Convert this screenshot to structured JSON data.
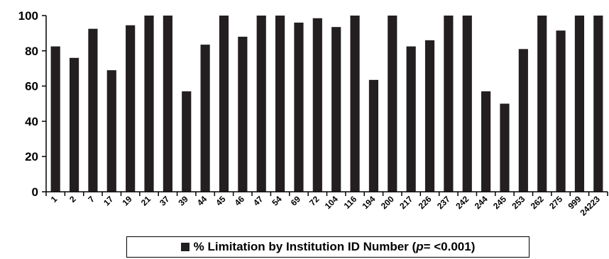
{
  "chart_data": {
    "type": "bar",
    "categories": [
      "1",
      "2",
      "7",
      "17",
      "19",
      "21",
      "37",
      "39",
      "44",
      "45",
      "46",
      "47",
      "54",
      "69",
      "72",
      "104",
      "116",
      "194",
      "200",
      "217",
      "226",
      "237",
      "242",
      "244",
      "245",
      "253",
      "262",
      "275",
      "999",
      "24223"
    ],
    "series": [
      {
        "name": "% Limitation by Institution ID Number",
        "values": [
          82.5,
          76,
          92.5,
          69,
          94.5,
          100,
          100,
          57,
          83.5,
          100,
          88,
          100,
          100,
          96,
          98.5,
          93.5,
          100,
          63.5,
          100,
          82.5,
          86,
          100,
          100,
          57,
          50,
          81,
          100,
          91.5,
          100,
          100
        ]
      }
    ],
    "ylim": [
      0,
      100
    ],
    "yticks": [
      "0",
      "20",
      "40",
      "60",
      "80",
      "100"
    ],
    "bar_color": "#231f20",
    "grid": false,
    "legend": {
      "position": "bottom",
      "text_main": "% Limitation by Institution ID Number (",
      "text_italic": "p",
      "text_tail": " = <0.001)"
    }
  }
}
